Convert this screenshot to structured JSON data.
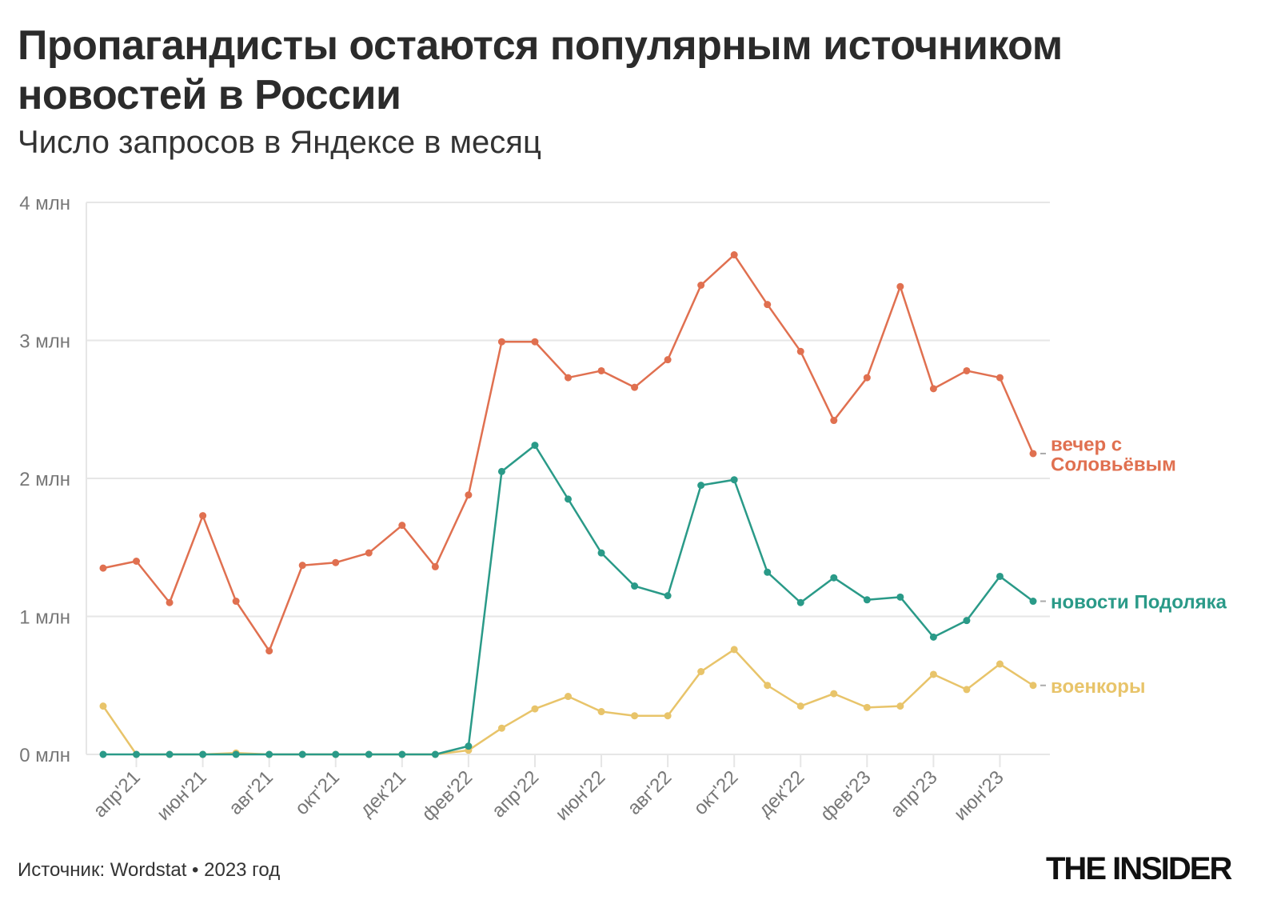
{
  "title": "Пропагандисты остаются популярным источником новостей в России",
  "subtitle": "Число запросов в Яндексе в месяц",
  "source": "Источник: Wordstat • 2023 год",
  "logo": "THE INSIDER",
  "chart_data": {
    "type": "line",
    "title": "Пропагандисты остаются популярным источником новостей в России",
    "subtitle": "Число запросов в Яндексе в месяц",
    "xlabel": "",
    "ylabel": "",
    "ylim": [
      0,
      4
    ],
    "yticks": [
      0,
      1,
      2,
      3,
      4
    ],
    "ytick_labels": [
      "0 млн",
      "1 млн",
      "2 млн",
      "3 млн",
      "4 млн"
    ],
    "grid": true,
    "legend": "direct labels at right end of lines",
    "x": [
      "2021-03",
      "2021-04",
      "2021-05",
      "2021-06",
      "2021-07",
      "2021-08",
      "2021-09",
      "2021-10",
      "2021-11",
      "2021-12",
      "2022-01",
      "2022-02",
      "2022-03",
      "2022-04",
      "2022-05",
      "2022-06",
      "2022-07",
      "2022-08",
      "2022-09",
      "2022-10",
      "2022-11",
      "2022-12",
      "2023-01",
      "2023-02",
      "2023-03",
      "2023-04",
      "2023-05",
      "2023-06",
      "2023-07"
    ],
    "xtick_labels": [
      "апр'21",
      "июн'21",
      "авг'21",
      "окт'21",
      "дек'21",
      "фев'22",
      "апр'22",
      "июн'22",
      "авг'22",
      "окт'22",
      "дек'22",
      "фев'23",
      "апр'23",
      "июн'23"
    ],
    "series": [
      {
        "name": "вечер с Соловьёвым",
        "label_lines": [
          "вечер с",
          "Соловьёвым"
        ],
        "color": "#e07050",
        "values": [
          1.35,
          1.4,
          1.1,
          1.73,
          1.11,
          0.75,
          1.37,
          1.39,
          1.46,
          1.66,
          1.36,
          1.88,
          2.99,
          2.99,
          2.73,
          2.78,
          2.66,
          2.86,
          3.4,
          3.62,
          3.26,
          2.92,
          2.42,
          2.73,
          3.39,
          2.65,
          2.78,
          2.73,
          2.18
        ]
      },
      {
        "name": "новости Подоляка",
        "label_lines": [
          "новости Подоляка"
        ],
        "color": "#2a9a88",
        "values": [
          0,
          0,
          0,
          0,
          0,
          0,
          0,
          0,
          0,
          0,
          0,
          0.06,
          2.05,
          2.24,
          1.85,
          1.46,
          1.22,
          1.15,
          1.95,
          1.99,
          1.32,
          1.1,
          1.28,
          1.12,
          1.14,
          0.85,
          0.97,
          1.29,
          1.11
        ]
      },
      {
        "name": "военкоры",
        "label_lines": [
          "военкоры"
        ],
        "color": "#e8c46a",
        "values": [
          0.35,
          0,
          0,
          0,
          0.01,
          0,
          0,
          0,
          0,
          0,
          0,
          0.03,
          0.19,
          0.33,
          0.42,
          0.31,
          0.28,
          0.28,
          0.6,
          0.76,
          0.5,
          0.35,
          0.44,
          0.34,
          0.35,
          0.58,
          0.47,
          0.655,
          0.5
        ]
      }
    ]
  }
}
